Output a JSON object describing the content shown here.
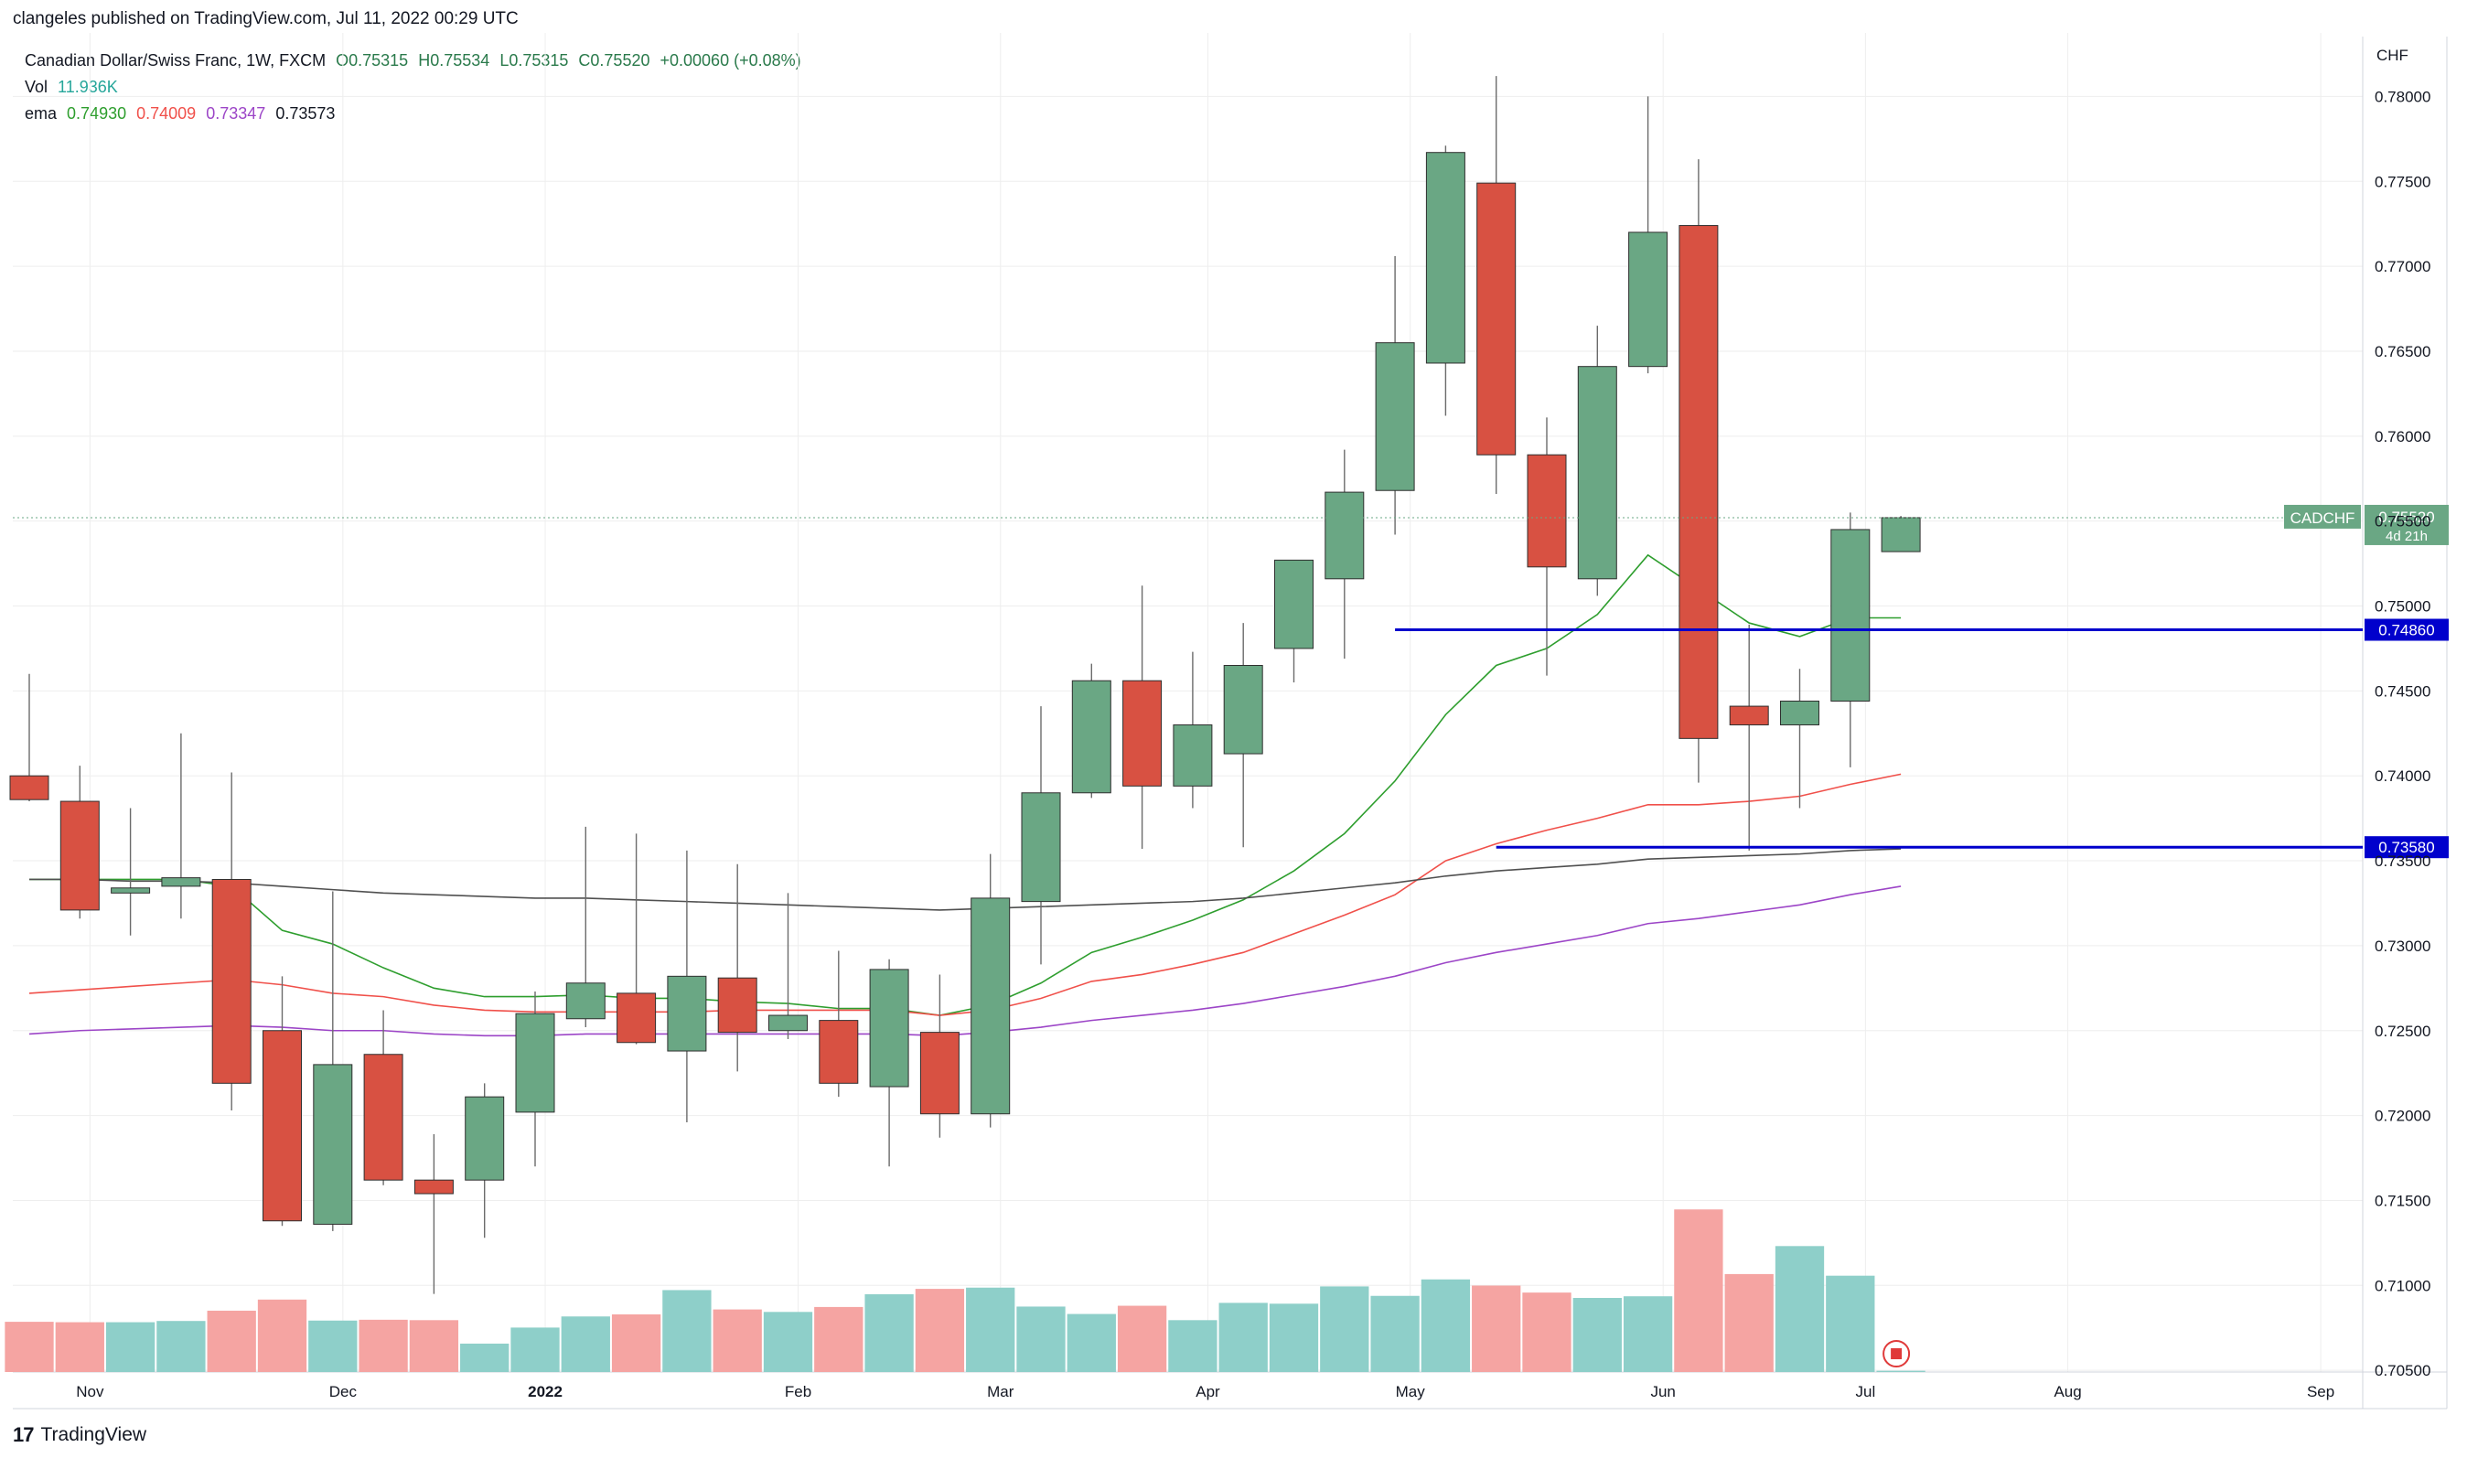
{
  "header": {
    "publisher_line": "clangeles published on TradingView.com, Jul 11, 2022 00:29 UTC"
  },
  "legend": {
    "symbol_line": "Canadian Dollar/Swiss Franc, 1W, FXCM",
    "open": "O0.75315",
    "high": "H0.75534",
    "low": "L0.75315",
    "close": "C0.75520",
    "change": "+0.00060 (+0.08%)",
    "vol_label": "Vol",
    "vol_value": "11.936K",
    "ema_label": "ema",
    "ema_values": [
      "0.74930",
      "0.74009",
      "0.73347",
      "0.73573"
    ]
  },
  "brand": {
    "name": "TradingView",
    "logo_text": "17"
  },
  "colors": {
    "up": "#6aa784",
    "down": "#d85142",
    "vol_up": "#8ecfc9",
    "vol_down": "#f5a4a2",
    "ema1": "#2e9e2e",
    "ema2": "#f0504a",
    "ema3": "#9c45c7",
    "ema4": "#505050",
    "hline": "#0000cc",
    "grid": "#eeeeee"
  },
  "chart_data": {
    "type": "candlestick",
    "currency": "CHF",
    "symbol_badge": "CADCHF",
    "last_price_label": "0.75520",
    "countdown": "4d 21h",
    "ylim": [
      0.7049,
      0.7832
    ],
    "y_ticks": [
      0.705,
      0.71,
      0.715,
      0.72,
      0.725,
      0.73,
      0.735,
      0.74,
      0.745,
      0.75,
      0.755,
      0.76,
      0.765,
      0.77,
      0.775,
      0.78
    ],
    "y_tick_labels": [
      "0.70500",
      "0.71000",
      "0.71500",
      "0.72000",
      "0.72500",
      "0.73000",
      "0.73500",
      "0.74000",
      "0.74500",
      "0.75000",
      "0.75500",
      "0.76000",
      "0.76500",
      "0.77000",
      "0.77500",
      "0.78000"
    ],
    "x_labels": [
      {
        "text": "Nov",
        "bar": 1.2
      },
      {
        "text": "Dec",
        "bar": 6.2
      },
      {
        "text": "2022",
        "bar": 10.2,
        "bold": true
      },
      {
        "text": "Feb",
        "bar": 15.2
      },
      {
        "text": "Mar",
        "bar": 19.2
      },
      {
        "text": "Apr",
        "bar": 23.3
      },
      {
        "text": "May",
        "bar": 27.3
      },
      {
        "text": "Jun",
        "bar": 32.3
      },
      {
        "text": "Jul",
        "bar": 36.3
      },
      {
        "text": "Aug",
        "bar": 40.3
      },
      {
        "text": "Sep",
        "bar": 45.3
      }
    ],
    "candles": [
      {
        "o": 0.74,
        "h": 0.746,
        "l": 0.7385,
        "c": 0.7386
      },
      {
        "o": 0.7385,
        "h": 0.7406,
        "l": 0.7316,
        "c": 0.7321
      },
      {
        "o": 0.7331,
        "h": 0.7381,
        "l": 0.7306,
        "c": 0.7334
      },
      {
        "o": 0.7335,
        "h": 0.7425,
        "l": 0.7316,
        "c": 0.734
      },
      {
        "o": 0.7339,
        "h": 0.7402,
        "l": 0.7203,
        "c": 0.7219
      },
      {
        "o": 0.725,
        "h": 0.7282,
        "l": 0.7135,
        "c": 0.7138
      },
      {
        "o": 0.7136,
        "h": 0.7332,
        "l": 0.7132,
        "c": 0.723
      },
      {
        "o": 0.7236,
        "h": 0.7262,
        "l": 0.7159,
        "c": 0.7162
      },
      {
        "o": 0.7162,
        "h": 0.7189,
        "l": 0.7095,
        "c": 0.7154
      },
      {
        "o": 0.7162,
        "h": 0.7219,
        "l": 0.7128,
        "c": 0.7211
      },
      {
        "o": 0.7202,
        "h": 0.7273,
        "l": 0.717,
        "c": 0.726
      },
      {
        "o": 0.7257,
        "h": 0.737,
        "l": 0.7252,
        "c": 0.7278
      },
      {
        "o": 0.7272,
        "h": 0.7366,
        "l": 0.7242,
        "c": 0.7243
      },
      {
        "o": 0.7238,
        "h": 0.7356,
        "l": 0.7196,
        "c": 0.7282
      },
      {
        "o": 0.7281,
        "h": 0.7348,
        "l": 0.7226,
        "c": 0.7249
      },
      {
        "o": 0.725,
        "h": 0.7331,
        "l": 0.7245,
        "c": 0.7259
      },
      {
        "o": 0.7256,
        "h": 0.7297,
        "l": 0.7211,
        "c": 0.7219
      },
      {
        "o": 0.7217,
        "h": 0.7292,
        "l": 0.717,
        "c": 0.7286
      },
      {
        "o": 0.7249,
        "h": 0.7283,
        "l": 0.7187,
        "c": 0.7201
      },
      {
        "o": 0.7201,
        "h": 0.7354,
        "l": 0.7193,
        "c": 0.7328
      },
      {
        "o": 0.7326,
        "h": 0.7441,
        "l": 0.7289,
        "c": 0.739
      },
      {
        "o": 0.739,
        "h": 0.7466,
        "l": 0.7387,
        "c": 0.7456
      },
      {
        "o": 0.7456,
        "h": 0.7512,
        "l": 0.7357,
        "c": 0.7394
      },
      {
        "o": 0.7394,
        "h": 0.7473,
        "l": 0.7381,
        "c": 0.743
      },
      {
        "o": 0.7413,
        "h": 0.749,
        "l": 0.7358,
        "c": 0.7465
      },
      {
        "o": 0.7475,
        "h": 0.752,
        "l": 0.7455,
        "c": 0.7527
      },
      {
        "o": 0.7516,
        "h": 0.7592,
        "l": 0.7469,
        "c": 0.7567
      },
      {
        "o": 0.7568,
        "h": 0.7706,
        "l": 0.7542,
        "c": 0.7655
      },
      {
        "o": 0.7643,
        "h": 0.7771,
        "l": 0.7612,
        "c": 0.7767
      },
      {
        "o": 0.7749,
        "h": 0.7812,
        "l": 0.7566,
        "c": 0.7589
      },
      {
        "o": 0.7589,
        "h": 0.7611,
        "l": 0.7459,
        "c": 0.7523
      },
      {
        "o": 0.7516,
        "h": 0.7665,
        "l": 0.7506,
        "c": 0.7641
      },
      {
        "o": 0.7641,
        "h": 0.78,
        "l": 0.7637,
        "c": 0.772
      },
      {
        "o": 0.7724,
        "h": 0.7763,
        "l": 0.7396,
        "c": 0.7422
      },
      {
        "o": 0.7441,
        "h": 0.7489,
        "l": 0.7356,
        "c": 0.743
      },
      {
        "o": 0.743,
        "h": 0.7463,
        "l": 0.7381,
        "c": 0.7444
      },
      {
        "o": 0.7444,
        "h": 0.7555,
        "l": 0.7405,
        "c": 0.7545
      },
      {
        "o": 0.7532,
        "h": 0.7553,
        "l": 0.7532,
        "c": 0.7552
      }
    ],
    "volume": [
      122,
      121,
      121,
      124,
      149,
      176,
      125,
      127,
      126,
      69,
      108,
      135,
      140,
      199,
      152,
      146,
      158,
      189,
      202,
      205,
      159,
      141,
      161,
      126,
      168,
      166,
      208,
      185,
      225,
      210,
      193,
      180,
      184,
      395,
      238,
      306,
      234,
      3
    ],
    "volume_max": 420,
    "ema_lines": [
      {
        "name": "ema1",
        "values": [
          0.7339,
          0.7339,
          0.7339,
          0.7339,
          0.7335,
          0.7309,
          0.7301,
          0.7287,
          0.7275,
          0.727,
          0.727,
          0.7271,
          0.7269,
          0.7269,
          0.7267,
          0.7266,
          0.7263,
          0.7263,
          0.7259,
          0.7265,
          0.7278,
          0.7296,
          0.7305,
          0.7315,
          0.7327,
          0.7344,
          0.7366,
          0.7397,
          0.7436,
          0.7465,
          0.7475,
          0.7495,
          0.753,
          0.751,
          0.749,
          0.7482,
          0.7493,
          0.7493
        ]
      },
      {
        "name": "ema2",
        "values": [
          0.7272,
          0.7274,
          0.7276,
          0.7278,
          0.728,
          0.7277,
          0.7272,
          0.727,
          0.7265,
          0.7262,
          0.7261,
          0.7261,
          0.7261,
          0.7261,
          0.7262,
          0.7262,
          0.7262,
          0.7262,
          0.7259,
          0.7262,
          0.7269,
          0.7279,
          0.7283,
          0.7289,
          0.7296,
          0.7307,
          0.7318,
          0.733,
          0.735,
          0.736,
          0.7368,
          0.7375,
          0.7383,
          0.7383,
          0.7385,
          0.7388,
          0.7395,
          0.7401
        ]
      },
      {
        "name": "ema3",
        "values": [
          0.7248,
          0.725,
          0.7251,
          0.7252,
          0.7253,
          0.7252,
          0.725,
          0.725,
          0.7248,
          0.7247,
          0.7247,
          0.7248,
          0.7248,
          0.7248,
          0.7248,
          0.7248,
          0.7248,
          0.7248,
          0.7247,
          0.7249,
          0.7252,
          0.7256,
          0.7259,
          0.7262,
          0.7266,
          0.7271,
          0.7276,
          0.7282,
          0.729,
          0.7296,
          0.7301,
          0.7306,
          0.7313,
          0.7316,
          0.732,
          0.7324,
          0.733,
          0.7335
        ]
      },
      {
        "name": "ema4",
        "values": [
          0.7339,
          0.7339,
          0.7338,
          0.7338,
          0.7337,
          0.7335,
          0.7333,
          0.7331,
          0.733,
          0.7329,
          0.7328,
          0.7328,
          0.7327,
          0.7326,
          0.7325,
          0.7324,
          0.7323,
          0.7322,
          0.7321,
          0.7322,
          0.7323,
          0.7324,
          0.7325,
          0.7326,
          0.7328,
          0.7331,
          0.7334,
          0.7337,
          0.7341,
          0.7344,
          0.7346,
          0.7348,
          0.7351,
          0.7352,
          0.7353,
          0.7354,
          0.7356,
          0.7357
        ]
      }
    ],
    "horizontal_lines": [
      {
        "value": 0.7486,
        "label": "0.74860",
        "from_bar": 27
      },
      {
        "value": 0.7358,
        "label": "0.73580",
        "from_bar": 29
      }
    ]
  }
}
